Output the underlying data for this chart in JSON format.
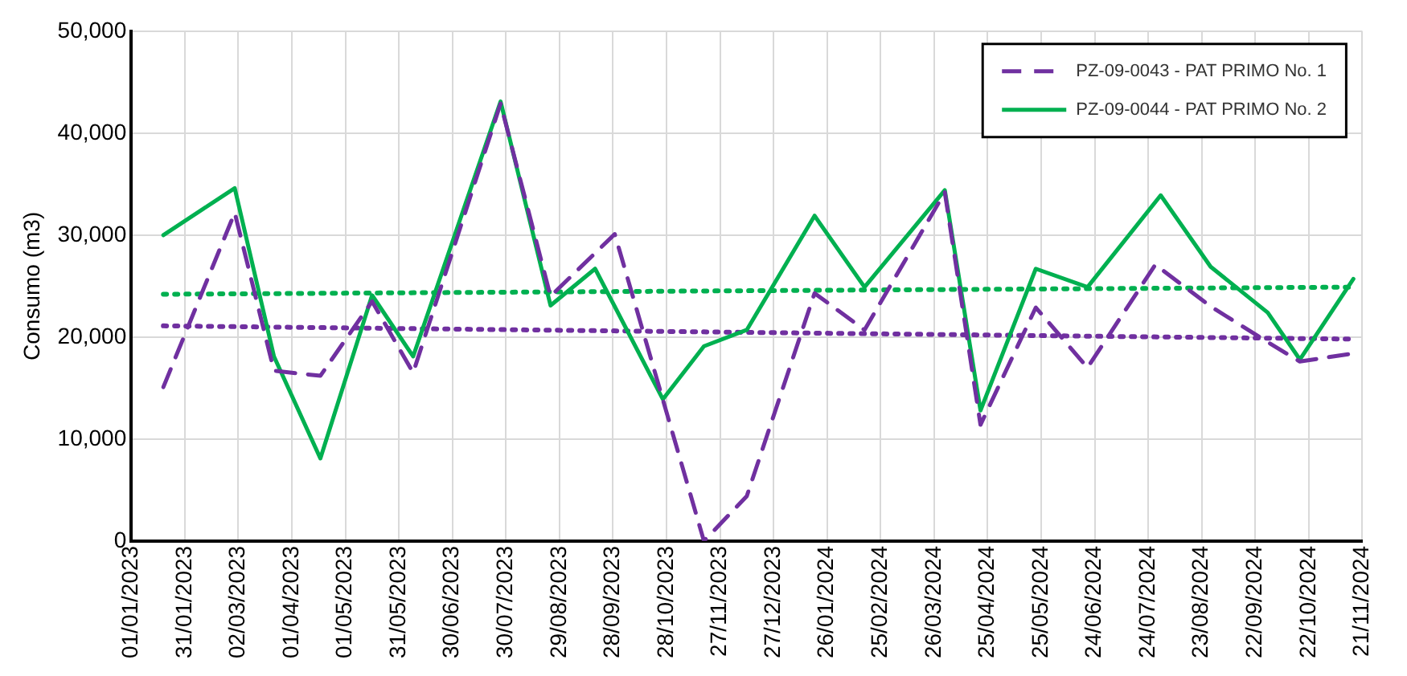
{
  "chart_data": {
    "type": "line",
    "ylabel": "Consumo (m3)",
    "xlim": [
      "2023-01-01",
      "2024-11-21"
    ],
    "xticks": [
      {
        "value": "2023-01-01",
        "label": "01/01/2023"
      },
      {
        "value": "2023-01-31",
        "label": "31/01/2023"
      },
      {
        "value": "2023-03-02",
        "label": "02/03/2023"
      },
      {
        "value": "2023-04-01",
        "label": "01/04/2023"
      },
      {
        "value": "2023-05-01",
        "label": "01/05/2023"
      },
      {
        "value": "2023-05-31",
        "label": "31/05/2023"
      },
      {
        "value": "2023-06-30",
        "label": "30/06/2023"
      },
      {
        "value": "2023-07-30",
        "label": "30/07/2023"
      },
      {
        "value": "2023-08-29",
        "label": "29/08/2023"
      },
      {
        "value": "2023-09-28",
        "label": "28/09/2023"
      },
      {
        "value": "2023-10-28",
        "label": "28/10/2023"
      },
      {
        "value": "2023-11-27",
        "label": "27/11/2023"
      },
      {
        "value": "2023-12-27",
        "label": "27/12/2023"
      },
      {
        "value": "2024-01-26",
        "label": "26/01/2024"
      },
      {
        "value": "2024-02-25",
        "label": "25/02/2024"
      },
      {
        "value": "2024-03-26",
        "label": "26/03/2024"
      },
      {
        "value": "2024-04-25",
        "label": "25/04/2024"
      },
      {
        "value": "2024-05-25",
        "label": "25/05/2024"
      },
      {
        "value": "2024-06-24",
        "label": "24/06/2024"
      },
      {
        "value": "2024-07-24",
        "label": "24/07/2024"
      },
      {
        "value": "2024-08-23",
        "label": "23/08/2024"
      },
      {
        "value": "2024-09-22",
        "label": "22/09/2024"
      },
      {
        "value": "2024-10-22",
        "label": "22/10/2024"
      },
      {
        "value": "2024-11-21",
        "label": "21/11/2024"
      }
    ],
    "ylim": [
      0,
      50000
    ],
    "yticks": [
      {
        "value": 0,
        "label": "0"
      },
      {
        "value": 10000,
        "label": "10,000"
      },
      {
        "value": 20000,
        "label": "20,000"
      },
      {
        "value": 30000,
        "label": "30,000"
      },
      {
        "value": 40000,
        "label": "40,000"
      },
      {
        "value": 50000,
        "label": "50,000"
      }
    ],
    "grid": true,
    "legend": "top right",
    "marker": "none",
    "series": [
      {
        "name": "PZ-09-0043 - PAT PRIMO No. 1",
        "color": "#7030a0",
        "line_style": "dashed",
        "x": [
          "2023-01-19",
          "2023-02-28",
          "2023-03-22",
          "2023-04-17",
          "2023-05-16",
          "2023-06-08",
          "2023-07-27",
          "2023-08-24",
          "2023-09-29",
          "2023-11-18",
          "2023-12-12",
          "2024-01-19",
          "2024-02-16",
          "2024-04-01",
          "2024-04-21",
          "2024-05-22",
          "2024-06-20",
          "2024-07-28",
          "2024-08-28",
          "2024-09-29",
          "2024-10-17",
          "2024-11-16"
        ],
        "values": [
          15100,
          32200,
          16700,
          16200,
          23500,
          16500,
          42900,
          24000,
          30100,
          0,
          4400,
          24300,
          20700,
          34200,
          11400,
          22900,
          17000,
          27100,
          23000,
          19500,
          17600,
          18400
        ]
      },
      {
        "name": "PZ-09-0044 - PAT PRIMO No. 2",
        "color": "#00b050",
        "line_style": "solid",
        "x": [
          "2023-01-19",
          "2023-02-28",
          "2023-03-22",
          "2023-04-17",
          "2023-05-16",
          "2023-06-08",
          "2023-07-27",
          "2023-08-24",
          "2023-09-18",
          "2023-10-26",
          "2023-11-18",
          "2023-12-12",
          "2024-01-19",
          "2024-02-16",
          "2024-04-01",
          "2024-04-21",
          "2024-05-22",
          "2024-06-20",
          "2024-07-31",
          "2024-08-28",
          "2024-09-29",
          "2024-10-17",
          "2024-11-16"
        ],
        "values": [
          30000,
          34600,
          18100,
          8100,
          24100,
          18100,
          43100,
          23100,
          26700,
          13900,
          19100,
          20700,
          31900,
          24900,
          34400,
          12800,
          26700,
          24900,
          33900,
          26900,
          22400,
          17800,
          25700
        ]
      },
      {
        "color": "#7030a0",
        "line_style": "dotted",
        "x": [
          "2023-01-19",
          "2024-11-16"
        ],
        "values": [
          21100,
          19800
        ]
      },
      {
        "color": "#00b050",
        "line_style": "dotted",
        "x": [
          "2023-01-19",
          "2024-11-16"
        ],
        "values": [
          24200,
          24900
        ]
      }
    ]
  }
}
